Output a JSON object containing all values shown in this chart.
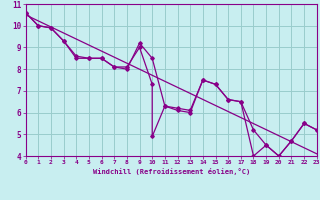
{
  "xlabel": "Windchill (Refroidissement éolien,°C)",
  "background_color": "#c8eef0",
  "line_color": "#880088",
  "xlim": [
    0,
    23
  ],
  "ylim": [
    4,
    11
  ],
  "xticks": [
    0,
    1,
    2,
    3,
    4,
    5,
    6,
    7,
    8,
    9,
    10,
    11,
    12,
    13,
    14,
    15,
    16,
    17,
    18,
    19,
    20,
    21,
    22,
    23
  ],
  "yticks": [
    4,
    5,
    6,
    7,
    8,
    9,
    10,
    11
  ],
  "grid_color": "#99cccc",
  "line1": [
    [
      0,
      10.6
    ],
    [
      1,
      10.0
    ],
    [
      2,
      9.9
    ],
    [
      3,
      9.3
    ],
    [
      4,
      8.6
    ],
    [
      5,
      8.5
    ],
    [
      6,
      8.5
    ],
    [
      7,
      8.1
    ],
    [
      8,
      8.1
    ],
    [
      9,
      9.0
    ],
    [
      10,
      7.3
    ],
    [
      10,
      4.9
    ],
    [
      11,
      6.3
    ],
    [
      12,
      6.2
    ],
    [
      13,
      6.1
    ],
    [
      14,
      7.5
    ],
    [
      15,
      7.3
    ],
    [
      16,
      6.6
    ],
    [
      17,
      6.5
    ],
    [
      18,
      4.0
    ],
    [
      19,
      4.5
    ],
    [
      20,
      4.0
    ],
    [
      21,
      4.7
    ],
    [
      22,
      5.5
    ],
    [
      23,
      5.2
    ]
  ],
  "line2": [
    [
      0,
      10.6
    ],
    [
      1,
      10.0
    ],
    [
      2,
      9.9
    ],
    [
      3,
      9.3
    ],
    [
      4,
      8.5
    ],
    [
      5,
      8.5
    ],
    [
      6,
      8.5
    ],
    [
      7,
      8.1
    ],
    [
      8,
      8.0
    ],
    [
      9,
      9.2
    ],
    [
      10,
      8.5
    ],
    [
      11,
      6.3
    ],
    [
      12,
      6.1
    ],
    [
      13,
      6.0
    ],
    [
      14,
      7.5
    ],
    [
      15,
      7.3
    ],
    [
      16,
      6.6
    ],
    [
      17,
      6.5
    ],
    [
      18,
      5.2
    ],
    [
      19,
      4.5
    ],
    [
      20,
      4.0
    ],
    [
      21,
      4.7
    ],
    [
      22,
      5.5
    ],
    [
      23,
      5.2
    ]
  ],
  "trend_line": [
    [
      0,
      10.5
    ],
    [
      23,
      4.1
    ]
  ]
}
